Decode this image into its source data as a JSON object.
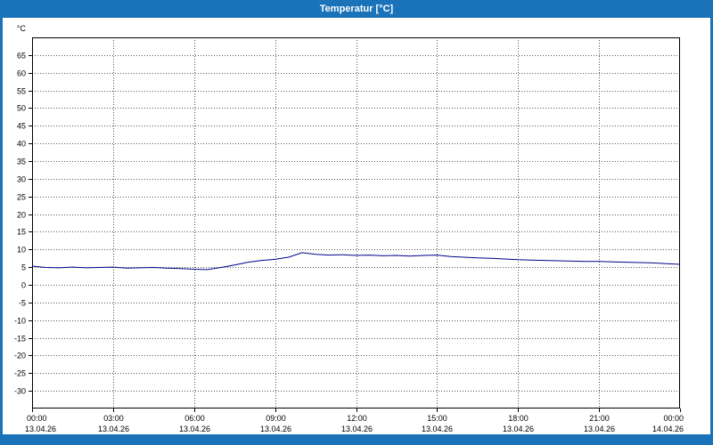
{
  "window": {
    "title": "Temperatur [°C]"
  },
  "colors": {
    "frame": "#1a72b8",
    "title_text": "#ffffff",
    "plot_background": "#ffffff",
    "plot_border": "#000000",
    "grid": "#555555",
    "line": "#00008b"
  },
  "chart_data": {
    "type": "line",
    "title": "Temperatur [°C]",
    "ylabel": "°C",
    "ylim": [
      -35,
      70
    ],
    "yticks": [
      65,
      60,
      55,
      50,
      45,
      40,
      35,
      30,
      25,
      20,
      15,
      10,
      5,
      0,
      -5,
      -10,
      -15,
      -20,
      -25,
      -30
    ],
    "xlim_hours": [
      0,
      24
    ],
    "xticks": [
      {
        "hour": 0,
        "time": "00:00",
        "date": "13.04.26"
      },
      {
        "hour": 3,
        "time": "03:00",
        "date": "13.04.26"
      },
      {
        "hour": 6,
        "time": "06:00",
        "date": "13.04.26"
      },
      {
        "hour": 9,
        "time": "09:00",
        "date": "13.04.26"
      },
      {
        "hour": 12,
        "time": "12:00",
        "date": "13.04.26"
      },
      {
        "hour": 15,
        "time": "15:00",
        "date": "13.04.26"
      },
      {
        "hour": 18,
        "time": "18:00",
        "date": "13.04.26"
      },
      {
        "hour": 21,
        "time": "21:00",
        "date": "13.04.26"
      },
      {
        "hour": 24,
        "time": "00:00",
        "date": "14.04.26"
      }
    ],
    "grid": "dotted",
    "legend": "none",
    "series": [
      {
        "name": "Temperatur",
        "color": "#00008b",
        "points": [
          [
            0,
            5.3
          ],
          [
            0.5,
            4.9
          ],
          [
            1,
            4.8
          ],
          [
            1.5,
            5.0
          ],
          [
            2,
            4.8
          ],
          [
            2.5,
            4.9
          ],
          [
            3,
            5.0
          ],
          [
            3.5,
            4.7
          ],
          [
            4,
            4.8
          ],
          [
            4.5,
            4.9
          ],
          [
            5,
            4.7
          ],
          [
            5.5,
            4.6
          ],
          [
            6,
            4.4
          ],
          [
            6.5,
            4.3
          ],
          [
            7,
            4.9
          ],
          [
            7.5,
            5.6
          ],
          [
            8,
            6.4
          ],
          [
            8.5,
            6.9
          ],
          [
            9,
            7.2
          ],
          [
            9.5,
            7.8
          ],
          [
            10,
            9.1
          ],
          [
            10.5,
            8.6
          ],
          [
            11,
            8.4
          ],
          [
            11.5,
            8.5
          ],
          [
            12,
            8.3
          ],
          [
            12.5,
            8.4
          ],
          [
            13,
            8.2
          ],
          [
            13.5,
            8.3
          ],
          [
            14,
            8.1
          ],
          [
            14.5,
            8.3
          ],
          [
            15,
            8.4
          ],
          [
            15.5,
            8.0
          ],
          [
            16,
            7.8
          ],
          [
            16.5,
            7.6
          ],
          [
            17,
            7.5
          ],
          [
            17.5,
            7.3
          ],
          [
            18,
            7.1
          ],
          [
            18.5,
            7.0
          ],
          [
            19,
            6.9
          ],
          [
            19.5,
            6.8
          ],
          [
            20,
            6.7
          ],
          [
            20.5,
            6.6
          ],
          [
            21,
            6.6
          ],
          [
            21.5,
            6.5
          ],
          [
            22,
            6.4
          ],
          [
            22.5,
            6.3
          ],
          [
            23,
            6.2
          ],
          [
            23.5,
            6.0
          ],
          [
            24,
            5.8
          ]
        ]
      }
    ]
  }
}
